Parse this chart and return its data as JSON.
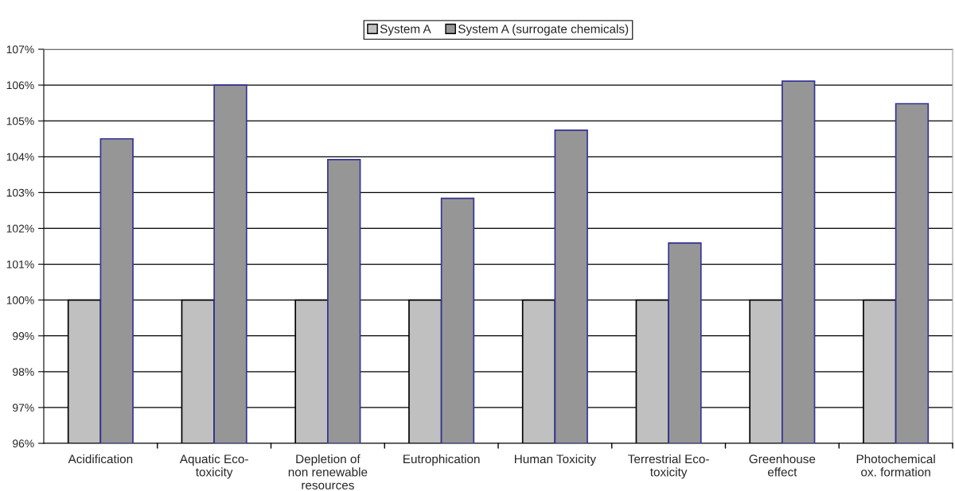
{
  "chart_data": {
    "type": "bar",
    "categories": [
      "Acidification",
      "Aquatic Eco-\ntoxicity",
      "Depletion of\nnon renewable\nresources",
      "Eutrophication",
      "Human Toxicity",
      "Terrestrial Eco-\ntoxicity",
      "Greenhouse\neffect",
      "Photochemical\nox. formation"
    ],
    "series": [
      {
        "name": "System A",
        "color": "#c0c0c0",
        "values": [
          100,
          100,
          100,
          100,
          100,
          100,
          100,
          100
        ]
      },
      {
        "name": "System A (surrogate chemicals)",
        "color": "#969696",
        "values": [
          104.5,
          106.0,
          103.92,
          102.84,
          104.74,
          101.59,
          106.11,
          105.48
        ]
      }
    ],
    "ylim": [
      96,
      107
    ],
    "yticks": [
      {
        "value": 96,
        "label": "96%"
      },
      {
        "value": 97,
        "label": "97%"
      },
      {
        "value": 98,
        "label": "98%"
      },
      {
        "value": 99,
        "label": "99%"
      },
      {
        "value": 100,
        "label": "100%"
      },
      {
        "value": 101,
        "label": "101%"
      },
      {
        "value": 102,
        "label": "102%"
      },
      {
        "value": 103,
        "label": "103%"
      },
      {
        "value": 104,
        "label": "104%"
      },
      {
        "value": 105,
        "label": "105%"
      },
      {
        "value": 106,
        "label": "106%"
      },
      {
        "value": 107,
        "label": "107%"
      }
    ],
    "grid": "y",
    "legend": "top"
  }
}
